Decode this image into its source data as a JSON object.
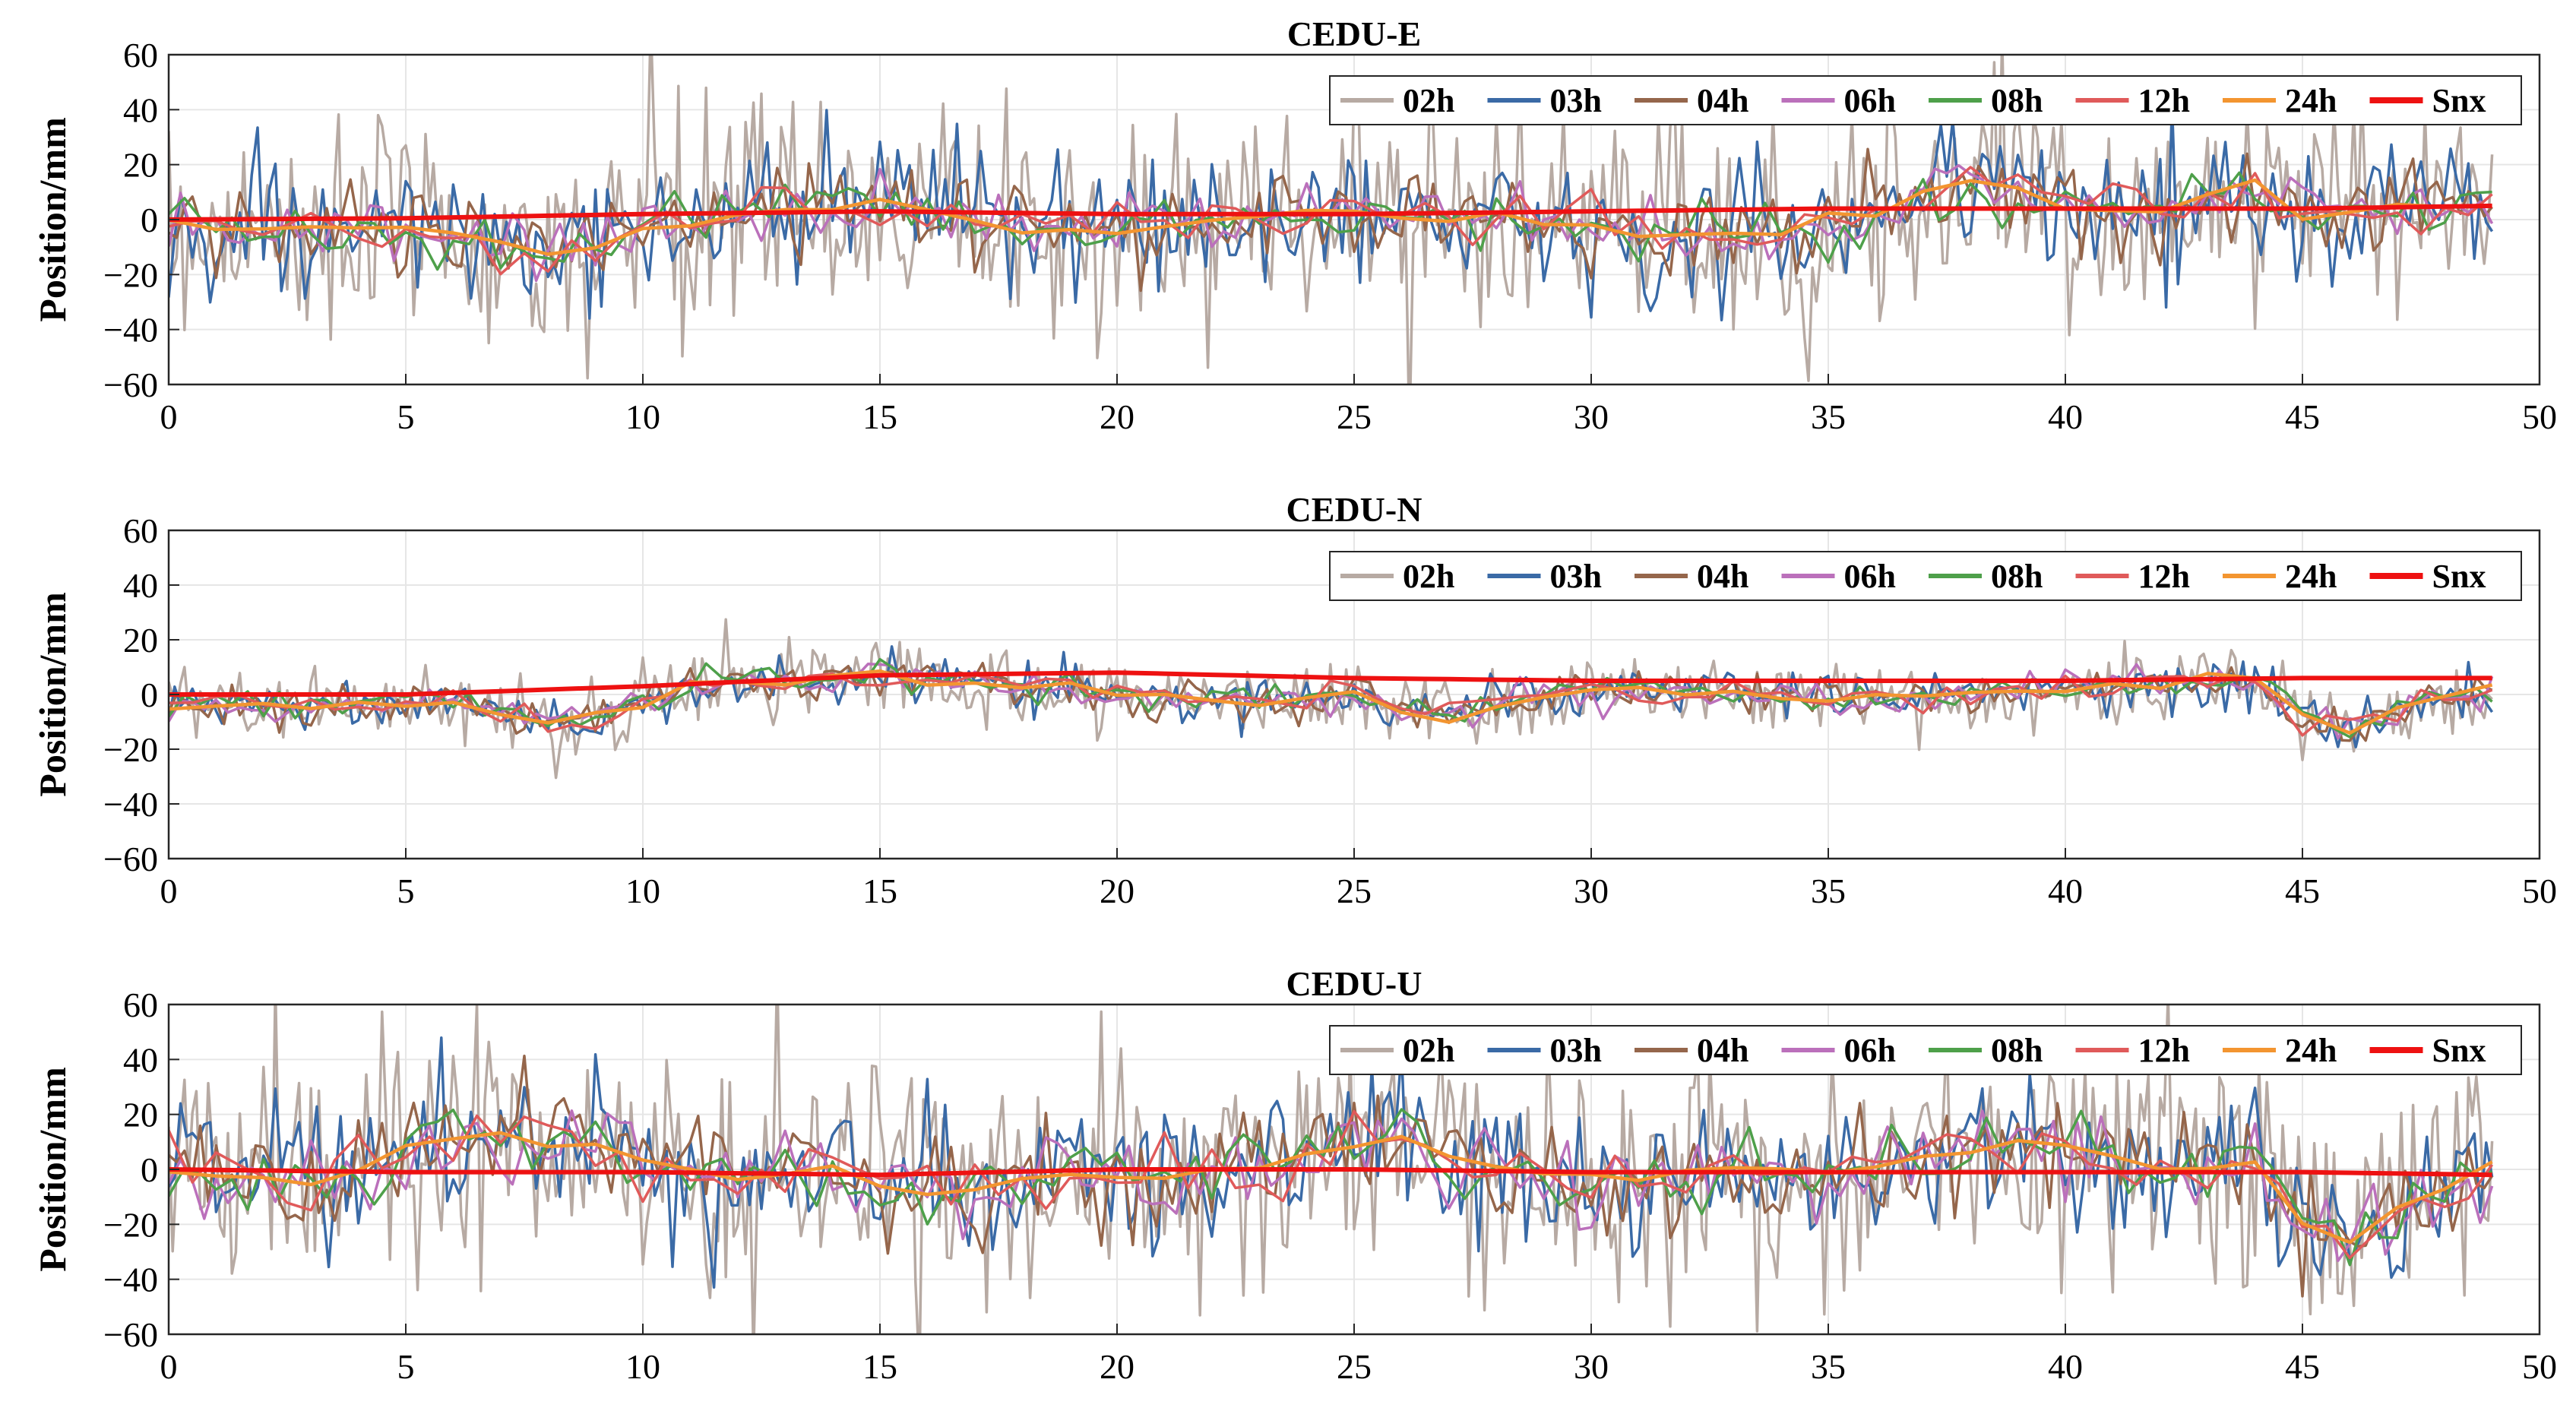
{
  "chart_data": [
    {
      "type": "line",
      "title": "CEDU-E",
      "ylabel": "Position/mm",
      "xlabel": "",
      "xlim": [
        0,
        50
      ],
      "ylim": [
        -60,
        60
      ],
      "xticks": [
        "0",
        "5",
        "10",
        "15",
        "20",
        "25",
        "30",
        "35",
        "40",
        "45",
        "50"
      ],
      "yticks": [
        "60",
        "40",
        "20",
        "0",
        "−20",
        "−40",
        "−60"
      ],
      "grid": true,
      "legend_position": "top-right",
      "amplitudes": {
        "02h": 28,
        "03h": 16,
        "04h": 11,
        "06h": 8,
        "08h": 7,
        "12h": 6
      },
      "trend_24h": [
        [
          0,
          -2
        ],
        [
          2,
          -3
        ],
        [
          4,
          -3
        ],
        [
          6,
          -6
        ],
        [
          8,
          -14
        ],
        [
          9,
          -10
        ],
        [
          10,
          -3
        ],
        [
          12,
          3
        ],
        [
          14,
          4
        ],
        [
          15,
          8
        ],
        [
          16,
          3
        ],
        [
          18,
          -3
        ],
        [
          20,
          -4
        ],
        [
          22,
          -1
        ],
        [
          24,
          3
        ],
        [
          26,
          4
        ],
        [
          28,
          0
        ],
        [
          30,
          -2
        ],
        [
          32,
          -6
        ],
        [
          34,
          -4
        ],
        [
          36,
          3
        ],
        [
          38,
          14
        ],
        [
          40,
          5
        ],
        [
          42,
          3
        ],
        [
          44,
          12
        ],
        [
          45,
          2
        ],
        [
          47,
          4
        ],
        [
          49,
          5
        ]
      ],
      "snx": [
        [
          0,
          0
        ],
        [
          5,
          0.5
        ],
        [
          10,
          2
        ],
        [
          15,
          3
        ],
        [
          20,
          2
        ],
        [
          25,
          2
        ],
        [
          30,
          3
        ],
        [
          35,
          4
        ],
        [
          40,
          4
        ],
        [
          45,
          4
        ],
        [
          49,
          5
        ]
      ],
      "series": [
        {
          "name": "02h",
          "color": "#b7aaa3"
        },
        {
          "name": "03h",
          "color": "#3a6aa6"
        },
        {
          "name": "04h",
          "color": "#95664b"
        },
        {
          "name": "06h",
          "color": "#bb70bb"
        },
        {
          "name": "08h",
          "color": "#4ea04a"
        },
        {
          "name": "12h",
          "color": "#e05a5a"
        },
        {
          "name": "24h",
          "color": "#f39530"
        },
        {
          "name": "Snx",
          "color": "#ee1111"
        }
      ]
    },
    {
      "type": "line",
      "title": "CEDU-N",
      "ylabel": "Position/mm",
      "xlabel": "",
      "xlim": [
        0,
        50
      ],
      "ylim": [
        -60,
        60
      ],
      "xticks": [
        "0",
        "5",
        "10",
        "15",
        "20",
        "25",
        "30",
        "35",
        "40",
        "45",
        "50"
      ],
      "yticks": [
        "60",
        "40",
        "20",
        "0",
        "−20",
        "−40",
        "−60"
      ],
      "grid": true,
      "legend_position": "top-right",
      "amplitudes": {
        "02h": 9,
        "03h": 6,
        "04h": 5,
        "06h": 4,
        "08h": 4,
        "12h": 3.5
      },
      "trend_24h": [
        [
          0,
          -3
        ],
        [
          2,
          -5
        ],
        [
          4,
          -4
        ],
        [
          6,
          -2
        ],
        [
          7,
          -6
        ],
        [
          8,
          -12
        ],
        [
          9,
          -8
        ],
        [
          10,
          -3
        ],
        [
          11,
          4
        ],
        [
          12,
          5
        ],
        [
          14,
          5
        ],
        [
          15,
          7
        ],
        [
          17,
          5
        ],
        [
          19,
          2
        ],
        [
          21,
          -1
        ],
        [
          23,
          -2
        ],
        [
          25,
          0
        ],
        [
          26,
          -6
        ],
        [
          27,
          -7
        ],
        [
          28,
          -3
        ],
        [
          30,
          2
        ],
        [
          32,
          1
        ],
        [
          34,
          -1
        ],
        [
          36,
          -2
        ],
        [
          38,
          0
        ],
        [
          40,
          2
        ],
        [
          42,
          4
        ],
        [
          44,
          5
        ],
        [
          45,
          -8
        ],
        [
          46,
          -12
        ],
        [
          47,
          -5
        ],
        [
          49,
          3
        ]
      ],
      "snx": [
        [
          0,
          0
        ],
        [
          5,
          0
        ],
        [
          10,
          3
        ],
        [
          15,
          7
        ],
        [
          20,
          8
        ],
        [
          25,
          6
        ],
        [
          30,
          5
        ],
        [
          35,
          5
        ],
        [
          40,
          5
        ],
        [
          45,
          6
        ],
        [
          49,
          6
        ]
      ],
      "series": [
        {
          "name": "02h",
          "color": "#b7aaa3"
        },
        {
          "name": "03h",
          "color": "#3a6aa6"
        },
        {
          "name": "04h",
          "color": "#95664b"
        },
        {
          "name": "06h",
          "color": "#bb70bb"
        },
        {
          "name": "08h",
          "color": "#4ea04a"
        },
        {
          "name": "12h",
          "color": "#e05a5a"
        },
        {
          "name": "24h",
          "color": "#f39530"
        },
        {
          "name": "Snx",
          "color": "#ee1111"
        }
      ]
    },
    {
      "type": "line",
      "title": "CEDU-U",
      "ylabel": "Position/mm",
      "xlabel": "",
      "xlim": [
        0,
        50
      ],
      "ylim": [
        -60,
        60
      ],
      "xticks": [
        "0",
        "5",
        "10",
        "15",
        "20",
        "25",
        "30",
        "35",
        "40",
        "45",
        "50"
      ],
      "yticks": [
        "60",
        "40",
        "20",
        "0",
        "−20",
        "−40",
        "−60"
      ],
      "grid": true,
      "legend_position": "top-right",
      "amplitudes": {
        "02h": 30,
        "03h": 18,
        "04h": 13,
        "06h": 10,
        "08h": 9,
        "12h": 8
      },
      "trend_24h": [
        [
          0,
          0
        ],
        [
          2,
          -2
        ],
        [
          3,
          -5
        ],
        [
          5,
          5
        ],
        [
          7,
          14
        ],
        [
          8,
          8
        ],
        [
          9,
          10
        ],
        [
          10,
          2
        ],
        [
          12,
          -2
        ],
        [
          14,
          0
        ],
        [
          15,
          -8
        ],
        [
          17,
          -6
        ],
        [
          19,
          -2
        ],
        [
          21,
          -4
        ],
        [
          23,
          0
        ],
        [
          25,
          8
        ],
        [
          26,
          12
        ],
        [
          27,
          5
        ],
        [
          29,
          -3
        ],
        [
          31,
          -4
        ],
        [
          33,
          0
        ],
        [
          35,
          -2
        ],
        [
          37,
          3
        ],
        [
          39,
          10
        ],
        [
          40,
          7
        ],
        [
          42,
          0
        ],
        [
          44,
          3
        ],
        [
          45,
          -20
        ],
        [
          46,
          -25
        ],
        [
          47,
          -15
        ],
        [
          49,
          0
        ]
      ],
      "snx": [
        [
          0,
          0
        ],
        [
          5,
          -1
        ],
        [
          10,
          -1
        ],
        [
          15,
          -2
        ],
        [
          20,
          0
        ],
        [
          25,
          0
        ],
        [
          30,
          -1
        ],
        [
          35,
          -1
        ],
        [
          40,
          -1
        ],
        [
          45,
          -1
        ],
        [
          49,
          -2
        ]
      ],
      "series": [
        {
          "name": "02h",
          "color": "#b7aaa3"
        },
        {
          "name": "03h",
          "color": "#3a6aa6"
        },
        {
          "name": "04h",
          "color": "#95664b"
        },
        {
          "name": "06h",
          "color": "#bb70bb"
        },
        {
          "name": "08h",
          "color": "#4ea04a"
        },
        {
          "name": "12h",
          "color": "#e05a5a"
        },
        {
          "name": "24h",
          "color": "#f39530"
        },
        {
          "name": "Snx",
          "color": "#ee1111"
        }
      ]
    }
  ]
}
